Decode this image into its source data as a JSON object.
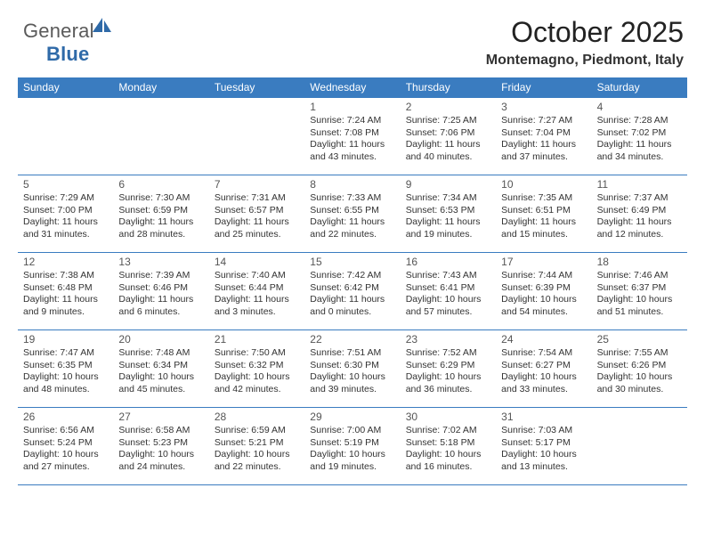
{
  "colors": {
    "header_bg": "#3a7cc0",
    "header_text": "#ffffff",
    "divider": "#3a7cc0",
    "logo_gray": "#5a5a5a",
    "logo_blue": "#2f6aa8",
    "title_color": "#222222",
    "body_text": "#333333",
    "daynum_color": "#555555",
    "page_bg": "#ffffff"
  },
  "logo": {
    "word1": "General",
    "word2": "Blue"
  },
  "title": "October 2025",
  "subtitle": "Montemagno, Piedmont, Italy",
  "weekdays": [
    "Sunday",
    "Monday",
    "Tuesday",
    "Wednesday",
    "Thursday",
    "Friday",
    "Saturday"
  ],
  "weeks": [
    [
      null,
      null,
      null,
      {
        "n": "1",
        "sunrise": "7:24 AM",
        "sunset": "7:08 PM",
        "dl": "11 hours and 43 minutes."
      },
      {
        "n": "2",
        "sunrise": "7:25 AM",
        "sunset": "7:06 PM",
        "dl": "11 hours and 40 minutes."
      },
      {
        "n": "3",
        "sunrise": "7:27 AM",
        "sunset": "7:04 PM",
        "dl": "11 hours and 37 minutes."
      },
      {
        "n": "4",
        "sunrise": "7:28 AM",
        "sunset": "7:02 PM",
        "dl": "11 hours and 34 minutes."
      }
    ],
    [
      {
        "n": "5",
        "sunrise": "7:29 AM",
        "sunset": "7:00 PM",
        "dl": "11 hours and 31 minutes."
      },
      {
        "n": "6",
        "sunrise": "7:30 AM",
        "sunset": "6:59 PM",
        "dl": "11 hours and 28 minutes."
      },
      {
        "n": "7",
        "sunrise": "7:31 AM",
        "sunset": "6:57 PM",
        "dl": "11 hours and 25 minutes."
      },
      {
        "n": "8",
        "sunrise": "7:33 AM",
        "sunset": "6:55 PM",
        "dl": "11 hours and 22 minutes."
      },
      {
        "n": "9",
        "sunrise": "7:34 AM",
        "sunset": "6:53 PM",
        "dl": "11 hours and 19 minutes."
      },
      {
        "n": "10",
        "sunrise": "7:35 AM",
        "sunset": "6:51 PM",
        "dl": "11 hours and 15 minutes."
      },
      {
        "n": "11",
        "sunrise": "7:37 AM",
        "sunset": "6:49 PM",
        "dl": "11 hours and 12 minutes."
      }
    ],
    [
      {
        "n": "12",
        "sunrise": "7:38 AM",
        "sunset": "6:48 PM",
        "dl": "11 hours and 9 minutes."
      },
      {
        "n": "13",
        "sunrise": "7:39 AM",
        "sunset": "6:46 PM",
        "dl": "11 hours and 6 minutes."
      },
      {
        "n": "14",
        "sunrise": "7:40 AM",
        "sunset": "6:44 PM",
        "dl": "11 hours and 3 minutes."
      },
      {
        "n": "15",
        "sunrise": "7:42 AM",
        "sunset": "6:42 PM",
        "dl": "11 hours and 0 minutes."
      },
      {
        "n": "16",
        "sunrise": "7:43 AM",
        "sunset": "6:41 PM",
        "dl": "10 hours and 57 minutes."
      },
      {
        "n": "17",
        "sunrise": "7:44 AM",
        "sunset": "6:39 PM",
        "dl": "10 hours and 54 minutes."
      },
      {
        "n": "18",
        "sunrise": "7:46 AM",
        "sunset": "6:37 PM",
        "dl": "10 hours and 51 minutes."
      }
    ],
    [
      {
        "n": "19",
        "sunrise": "7:47 AM",
        "sunset": "6:35 PM",
        "dl": "10 hours and 48 minutes."
      },
      {
        "n": "20",
        "sunrise": "7:48 AM",
        "sunset": "6:34 PM",
        "dl": "10 hours and 45 minutes."
      },
      {
        "n": "21",
        "sunrise": "7:50 AM",
        "sunset": "6:32 PM",
        "dl": "10 hours and 42 minutes."
      },
      {
        "n": "22",
        "sunrise": "7:51 AM",
        "sunset": "6:30 PM",
        "dl": "10 hours and 39 minutes."
      },
      {
        "n": "23",
        "sunrise": "7:52 AM",
        "sunset": "6:29 PM",
        "dl": "10 hours and 36 minutes."
      },
      {
        "n": "24",
        "sunrise": "7:54 AM",
        "sunset": "6:27 PM",
        "dl": "10 hours and 33 minutes."
      },
      {
        "n": "25",
        "sunrise": "7:55 AM",
        "sunset": "6:26 PM",
        "dl": "10 hours and 30 minutes."
      }
    ],
    [
      {
        "n": "26",
        "sunrise": "6:56 AM",
        "sunset": "5:24 PM",
        "dl": "10 hours and 27 minutes."
      },
      {
        "n": "27",
        "sunrise": "6:58 AM",
        "sunset": "5:23 PM",
        "dl": "10 hours and 24 minutes."
      },
      {
        "n": "28",
        "sunrise": "6:59 AM",
        "sunset": "5:21 PM",
        "dl": "10 hours and 22 minutes."
      },
      {
        "n": "29",
        "sunrise": "7:00 AM",
        "sunset": "5:19 PM",
        "dl": "10 hours and 19 minutes."
      },
      {
        "n": "30",
        "sunrise": "7:02 AM",
        "sunset": "5:18 PM",
        "dl": "10 hours and 16 minutes."
      },
      {
        "n": "31",
        "sunrise": "7:03 AM",
        "sunset": "5:17 PM",
        "dl": "10 hours and 13 minutes."
      },
      null
    ]
  ],
  "labels": {
    "sunrise_prefix": "Sunrise: ",
    "sunset_prefix": "Sunset: ",
    "daylight_prefix": "Daylight: "
  }
}
